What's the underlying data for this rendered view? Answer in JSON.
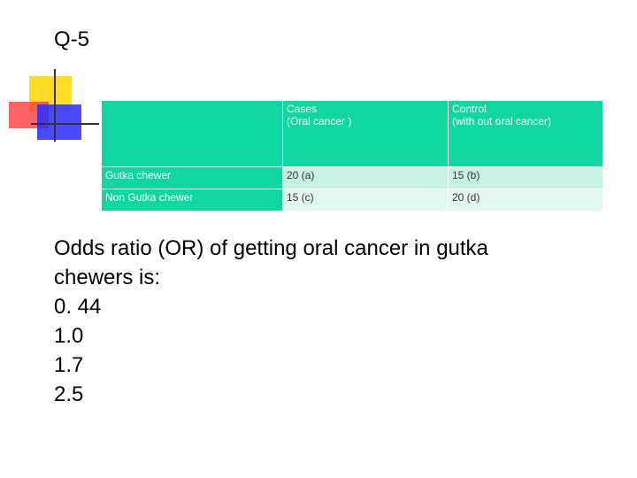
{
  "title": "Q-5",
  "table": {
    "header": [
      "",
      "Cases\n(Oral cancer )",
      "Control\n(with out oral cancer)"
    ],
    "rows": [
      [
        "Gutka chewer",
        "20 (a)",
        "15 (b)"
      ],
      [
        "Non Gutka chewer",
        "15 (c)",
        "20 (d)"
      ]
    ]
  },
  "question": "Odds ratio (OR) of getting oral cancer in gutka chewers is:",
  "options": [
    "0. 44",
    "1.0",
    "1.7",
    "2.5"
  ]
}
